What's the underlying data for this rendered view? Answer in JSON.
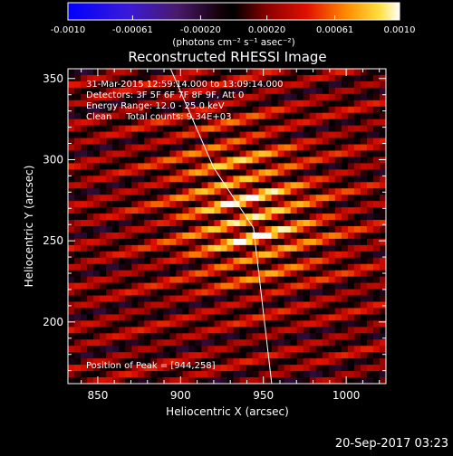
{
  "colorbar": {
    "ticks": [
      "-0.0010",
      "-0.00061",
      "-0.00020",
      "0.00020",
      "0.00061",
      "0.0010"
    ],
    "unit_label": "(photons cm⁻² s⁻¹ asec⁻²)",
    "range": [
      -0.001,
      0.001
    ]
  },
  "chart_data": {
    "type": "heatmap",
    "title": "Reconstructed RHESSI Image",
    "xlabel": "Heliocentric X (arcsec)",
    "ylabel": "Heliocentric Y (arcsec)",
    "xlim": [
      832,
      1024
    ],
    "ylim": [
      162,
      356
    ],
    "xticks": [
      850,
      900,
      950,
      1000
    ],
    "yticks": [
      200,
      250,
      300,
      350
    ],
    "annotations": [
      "31-Mar-2015 12:59:14.000 to 13:09:14.000",
      "Detectors: 3F 5F 6F 7F 8F 9F, Att 0",
      "Energy Range: 12.0 - 25.0 keV",
      "Clean     Total counts: 9.34E+03"
    ],
    "peak_label": "Position of Peak = [944,258]",
    "peak": [
      944,
      258
    ],
    "limb_line": [
      [
        894,
        356
      ],
      [
        920,
        295
      ],
      [
        944,
        258
      ],
      [
        955,
        162
      ]
    ],
    "colormap": "RHESSI red-temperature (negative: blue-purple, positive: red-yellow-white)"
  },
  "footer": {
    "timestamp": "20-Sep-2017 03:23"
  }
}
